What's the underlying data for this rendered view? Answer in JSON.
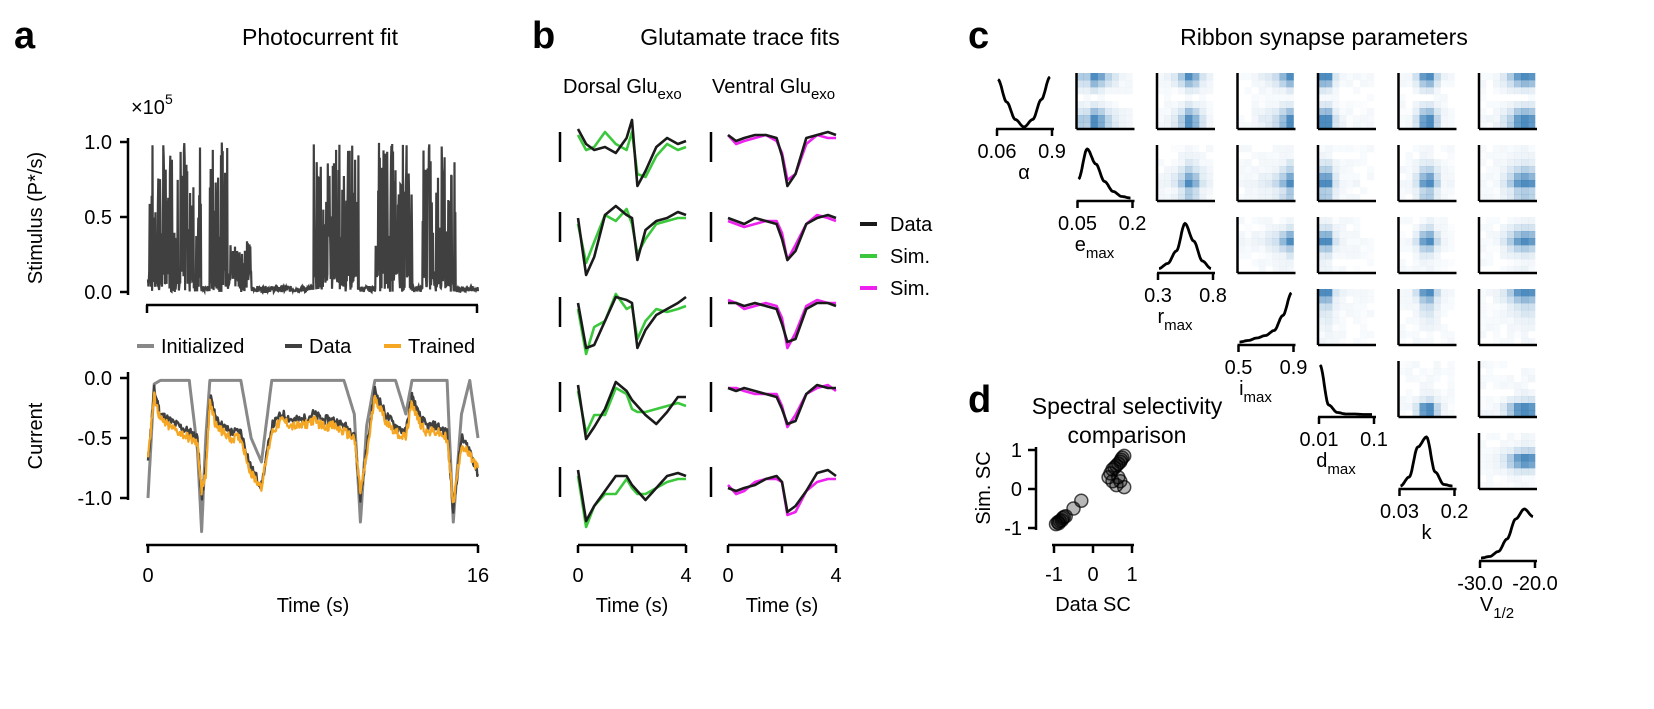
{
  "panels": {
    "a": {
      "letter": "a",
      "title": "Photocurrent fit"
    },
    "b": {
      "letter": "b",
      "title": "Glutamate trace fits"
    },
    "c": {
      "letter": "c",
      "title": "Ribbon synapse parameters"
    },
    "d": {
      "letter": "d",
      "title_line1": "Spectral selectivity",
      "title_line2": "comparison"
    }
  },
  "colors": {
    "data": "#1a1a1a",
    "dark_data": "#404040",
    "initialized": "#888888",
    "trained": "#f5a623",
    "dorsal_sim": "#3cc83c",
    "ventral_sim": "#ee22ee",
    "density": "#2f78b4"
  },
  "chart_data": [
    {
      "id": "stimulus",
      "type": "line",
      "ylabel": "Stimulus (P*/s)",
      "multiplier": "×10",
      "multiplier_exp": "5",
      "y_ticks": [
        "0.0",
        "0.5",
        "1.0"
      ],
      "ylim": [
        0,
        1.05
      ],
      "xlim": [
        0,
        16
      ],
      "series": [
        {
          "name": "",
          "segments": [
            {
              "x0": 0.0,
              "x1": 2.6,
              "level": "high"
            },
            {
              "x0": 2.6,
              "x1": 3.0,
              "level": "low"
            },
            {
              "x0": 3.0,
              "x1": 4.0,
              "level": "high"
            },
            {
              "x0": 4.0,
              "x1": 5.0,
              "level": "mid"
            },
            {
              "x0": 5.0,
              "x1": 8.0,
              "level": "low"
            },
            {
              "x0": 8.0,
              "x1": 10.2,
              "level": "high"
            },
            {
              "x0": 10.2,
              "x1": 11.0,
              "level": "low"
            },
            {
              "x0": 11.0,
              "x1": 12.8,
              "level": "high"
            },
            {
              "x0": 12.8,
              "x1": 13.3,
              "level": "low"
            },
            {
              "x0": 13.3,
              "x1": 14.9,
              "level": "high"
            },
            {
              "x0": 14.9,
              "x1": 16.0,
              "level": "low"
            }
          ]
        }
      ]
    },
    {
      "id": "current",
      "type": "line",
      "xlabel": "Time (s)",
      "ylabel": "Current",
      "y_ticks": [
        "0.0",
        "-0.5",
        "-1.0"
      ],
      "x_ticks": [
        "0",
        "16"
      ],
      "xlim": [
        0,
        16
      ],
      "ylim": [
        -1.3,
        0.05
      ],
      "legend": [
        "Initialized",
        "Data",
        "Trained"
      ],
      "series": [
        {
          "name": "Initialized",
          "x": [
            0,
            0.3,
            0.6,
            1.0,
            1.5,
            2.0,
            2.4,
            2.6,
            2.8,
            3.0,
            3.3,
            3.6,
            4.0,
            4.5,
            5.0,
            5.5,
            6.0,
            6.5,
            7.0,
            7.5,
            8.0,
            8.5,
            9.0,
            9.5,
            10.0,
            10.3,
            10.6,
            11.0,
            11.5,
            12.0,
            12.5,
            12.8,
            13.1,
            13.5,
            14.0,
            14.5,
            14.8,
            15.2,
            15.6,
            16.0
          ],
          "y": [
            -1.0,
            -0.05,
            -0.02,
            -0.02,
            -0.02,
            -0.02,
            -0.6,
            -1.28,
            -0.5,
            -0.02,
            -0.02,
            -0.02,
            -0.02,
            -0.02,
            -0.5,
            -0.7,
            -0.02,
            -0.02,
            -0.02,
            -0.02,
            -0.02,
            -0.02,
            -0.02,
            -0.02,
            -0.3,
            -1.2,
            -0.4,
            -0.02,
            -0.02,
            -0.02,
            -0.3,
            -0.02,
            -0.02,
            -0.02,
            -0.02,
            -0.02,
            -1.2,
            -0.3,
            -0.02,
            -0.5
          ]
        },
        {
          "name": "Data",
          "x": [
            0,
            0.3,
            0.6,
            1.0,
            1.5,
            2.0,
            2.4,
            2.6,
            2.8,
            3.0,
            3.3,
            3.6,
            4.0,
            4.5,
            5.0,
            5.5,
            6.0,
            6.5,
            7.0,
            7.5,
            8.0,
            8.5,
            9.0,
            9.5,
            10.0,
            10.3,
            10.6,
            11.0,
            11.5,
            12.0,
            12.5,
            12.8,
            13.1,
            13.5,
            14.0,
            14.5,
            14.8,
            15.2,
            15.6,
            16.0
          ],
          "y": [
            -0.7,
            -0.1,
            -0.3,
            -0.35,
            -0.4,
            -0.45,
            -0.5,
            -1.0,
            -0.75,
            -0.15,
            -0.35,
            -0.4,
            -0.45,
            -0.45,
            -0.75,
            -0.9,
            -0.4,
            -0.3,
            -0.35,
            -0.35,
            -0.3,
            -0.35,
            -0.35,
            -0.4,
            -0.45,
            -1.0,
            -0.6,
            -0.1,
            -0.3,
            -0.4,
            -0.45,
            -0.15,
            -0.3,
            -0.4,
            -0.4,
            -0.45,
            -1.1,
            -0.5,
            -0.6,
            -0.8
          ]
        },
        {
          "name": "Trained",
          "x": [
            0,
            0.3,
            0.6,
            1.0,
            1.5,
            2.0,
            2.4,
            2.6,
            2.8,
            3.0,
            3.3,
            3.6,
            4.0,
            4.5,
            5.0,
            5.5,
            6.0,
            6.5,
            7.0,
            7.5,
            8.0,
            8.5,
            9.0,
            9.5,
            10.0,
            10.3,
            10.6,
            11.0,
            11.5,
            12.0,
            12.5,
            12.8,
            13.1,
            13.5,
            14.0,
            14.5,
            14.8,
            15.2,
            15.6,
            16.0
          ],
          "y": [
            -0.65,
            -0.15,
            -0.35,
            -0.4,
            -0.45,
            -0.5,
            -0.55,
            -0.95,
            -0.8,
            -0.2,
            -0.4,
            -0.45,
            -0.5,
            -0.5,
            -0.8,
            -0.9,
            -0.45,
            -0.35,
            -0.4,
            -0.4,
            -0.35,
            -0.4,
            -0.4,
            -0.45,
            -0.5,
            -0.95,
            -0.65,
            -0.15,
            -0.35,
            -0.45,
            -0.5,
            -0.2,
            -0.35,
            -0.45,
            -0.45,
            -0.5,
            -1.05,
            -0.55,
            -0.65,
            -0.75
          ]
        }
      ]
    },
    {
      "id": "glutamate",
      "type": "line",
      "column_titles": [
        {
          "main": "Dorsal Glu",
          "sub": "exo"
        },
        {
          "main": "Ventral Glu",
          "sub": "exo"
        }
      ],
      "xlabel": "Time (s)",
      "x_ticks": [
        "0",
        "2",
        "4"
      ],
      "xlim": [
        0,
        4
      ],
      "legend": [
        "Data",
        "Sim.",
        "Sim."
      ],
      "t": [
        0,
        0.3,
        0.6,
        1.0,
        1.4,
        1.8,
        2.0,
        2.2,
        2.5,
        2.9,
        3.3,
        3.7,
        4.0
      ],
      "traces": [
        {
          "column": "dorsal",
          "row": 1,
          "data": [
            0.0,
            -0.5,
            -0.7,
            -0.6,
            -0.8,
            -0.3,
            0.3,
            -1.9,
            -1.4,
            -0.6,
            -0.3,
            -0.5,
            -0.4
          ],
          "sim": [
            -0.2,
            -0.7,
            -0.6,
            -0.1,
            -0.5,
            -0.7,
            -0.1,
            -1.5,
            -1.6,
            -0.9,
            -0.5,
            -0.7,
            -0.6
          ]
        },
        {
          "column": "dorsal",
          "row": 2,
          "data": [
            -0.3,
            -2.2,
            -1.6,
            -0.2,
            0.1,
            -0.2,
            -0.3,
            -1.7,
            -0.7,
            -0.4,
            -0.3,
            -0.1,
            -0.2
          ],
          "sim": [
            -0.5,
            -1.8,
            -1.1,
            -0.2,
            -0.4,
            0.0,
            -0.5,
            -1.5,
            -1.0,
            -0.5,
            -0.4,
            -0.3,
            -0.3
          ]
        },
        {
          "column": "dorsal",
          "row": 3,
          "data": [
            -0.3,
            -1.8,
            -1.7,
            -0.9,
            -0.1,
            -0.2,
            -0.3,
            -1.8,
            -1.2,
            -0.7,
            -0.5,
            -0.3,
            -0.1
          ],
          "sim": [
            -0.5,
            -2.0,
            -1.1,
            -0.9,
            0.0,
            -0.5,
            -0.4,
            -1.5,
            -0.9,
            -0.5,
            -0.6,
            -0.5,
            -0.4
          ]
        },
        {
          "column": "dorsal",
          "row": 4,
          "data": [
            -0.2,
            -2.0,
            -1.6,
            -1.0,
            -0.1,
            -0.4,
            -0.7,
            -0.9,
            -1.2,
            -1.5,
            -1.1,
            -0.6,
            -0.6
          ],
          "sim": [
            -0.4,
            -1.8,
            -1.2,
            -1.2,
            -0.3,
            -0.5,
            -1.0,
            -1.1,
            -1.1,
            -1.0,
            -0.9,
            -0.8,
            -0.9
          ]
        },
        {
          "column": "dorsal",
          "row": 5,
          "data": [
            -0.2,
            -1.9,
            -1.4,
            -0.9,
            -0.4,
            -0.4,
            -0.7,
            -0.9,
            -1.2,
            -0.8,
            -0.4,
            -0.3,
            -0.4
          ],
          "sim": [
            -0.4,
            -2.1,
            -1.4,
            -1.0,
            -1.0,
            -0.5,
            -0.8,
            -1.0,
            -1.0,
            -0.8,
            -0.6,
            -0.5,
            -0.5
          ]
        },
        {
          "column": "ventral",
          "row": 1,
          "data": [
            -0.2,
            -0.4,
            -0.3,
            -0.2,
            -0.2,
            -0.3,
            -0.9,
            -1.9,
            -1.5,
            -0.3,
            -0.2,
            -0.1,
            -0.2
          ],
          "sim": [
            -0.2,
            -0.5,
            -0.4,
            -0.3,
            -0.2,
            -0.4,
            -0.8,
            -1.7,
            -1.5,
            -0.5,
            -0.2,
            -0.3,
            -0.3
          ]
        },
        {
          "column": "ventral",
          "row": 2,
          "data": [
            -0.3,
            -0.4,
            -0.5,
            -0.3,
            -0.4,
            -0.5,
            -1.0,
            -1.7,
            -1.4,
            -0.5,
            -0.3,
            -0.2,
            -0.3
          ],
          "sim": [
            -0.4,
            -0.5,
            -0.6,
            -0.5,
            -0.4,
            -0.4,
            -0.8,
            -1.7,
            -1.2,
            -0.5,
            -0.2,
            -0.3,
            -0.4
          ]
        },
        {
          "column": "ventral",
          "row": 3,
          "data": [
            -0.3,
            -0.3,
            -0.4,
            -0.3,
            -0.4,
            -0.5,
            -1.0,
            -1.6,
            -1.5,
            -0.5,
            -0.3,
            -0.3,
            -0.4
          ],
          "sim": [
            -0.2,
            -0.3,
            -0.5,
            -0.4,
            -0.3,
            -0.4,
            -0.8,
            -1.8,
            -1.3,
            -0.4,
            -0.2,
            -0.3,
            -0.3
          ]
        },
        {
          "column": "ventral",
          "row": 4,
          "data": [
            -0.3,
            -0.4,
            -0.3,
            -0.4,
            -0.5,
            -0.6,
            -1.0,
            -1.5,
            -1.4,
            -0.5,
            -0.2,
            -0.3,
            -0.3
          ],
          "sim": [
            -0.3,
            -0.3,
            -0.4,
            -0.5,
            -0.5,
            -0.5,
            -0.9,
            -1.6,
            -1.2,
            -0.5,
            -0.3,
            -0.2,
            -0.4
          ]
        },
        {
          "column": "ventral",
          "row": 5,
          "data": [
            -0.8,
            -0.9,
            -0.8,
            -0.7,
            -0.5,
            -0.4,
            -0.6,
            -1.6,
            -1.4,
            -0.9,
            -0.3,
            -0.2,
            -0.4
          ],
          "sim": [
            -0.7,
            -1.0,
            -0.9,
            -0.6,
            -0.5,
            -0.5,
            -0.6,
            -1.7,
            -1.6,
            -0.9,
            -0.6,
            -0.5,
            -0.5
          ]
        }
      ]
    },
    {
      "id": "ribbon-parameters",
      "type": "heatmap",
      "parameters": [
        {
          "name": "α",
          "sub": "",
          "ticks": [
            "0.06",
            "0.9"
          ],
          "density": [
            0.95,
            0.5,
            0.15,
            0.0,
            0.15,
            0.55,
            1.0
          ]
        },
        {
          "name": "e",
          "sub": "max",
          "ticks": [
            "0.05",
            "0.2"
          ],
          "density": [
            0.4,
            1.0,
            0.7,
            0.35,
            0.15,
            0.05,
            0.02
          ]
        },
        {
          "name": "r",
          "sub": "max",
          "ticks": [
            "0.3",
            "0.8"
          ],
          "density": [
            0.05,
            0.15,
            0.4,
            0.95,
            0.6,
            0.2,
            0.05
          ]
        },
        {
          "name": "i",
          "sub": "max",
          "ticks": [
            "0.5",
            "0.9"
          ],
          "density": [
            0.02,
            0.05,
            0.1,
            0.15,
            0.25,
            0.55,
            1.0
          ]
        },
        {
          "name": "d",
          "sub": "max",
          "ticks": [
            "0.01",
            "0.1"
          ],
          "density": [
            1.0,
            0.2,
            0.05,
            0.02,
            0.02,
            0.01,
            0.01
          ]
        },
        {
          "name": "k",
          "sub": "",
          "ticks": [
            "0.03",
            "0.2"
          ],
          "density": [
            0.02,
            0.2,
            0.8,
            1.0,
            0.3,
            0.05,
            0.02
          ]
        },
        {
          "name": "V",
          "sub": "1/2",
          "ticks": [
            "-30.0",
            "-20.0"
          ],
          "density": [
            0.02,
            0.05,
            0.15,
            0.4,
            0.8,
            1.0,
            0.85
          ]
        }
      ]
    },
    {
      "id": "spectral-selectivity",
      "type": "scatter",
      "xlabel": "Data SC",
      "ylabel": "Sim. SC",
      "x_ticks": [
        "-1",
        "0",
        "1"
      ],
      "y_ticks": [
        "1",
        "0",
        "-1"
      ],
      "xlim": [
        -1,
        1
      ],
      "ylim": [
        -1,
        1
      ],
      "x": [
        -0.95,
        -0.9,
        -0.88,
        -0.85,
        -0.8,
        -0.78,
        -0.75,
        -0.7,
        -0.5,
        -0.3,
        0.4,
        0.45,
        0.5,
        0.55,
        0.6,
        0.65,
        0.7,
        0.72,
        0.75,
        0.8,
        0.6,
        0.7,
        0.8,
        0.5,
        0.65
      ],
      "y": [
        -0.9,
        -0.85,
        -0.88,
        -0.82,
        -0.8,
        -0.75,
        -0.72,
        -0.7,
        -0.5,
        -0.3,
        0.3,
        0.4,
        0.5,
        0.55,
        0.6,
        0.65,
        0.7,
        0.75,
        0.8,
        0.85,
        0.1,
        0.2,
        0.05,
        0.2,
        0.3
      ]
    }
  ]
}
